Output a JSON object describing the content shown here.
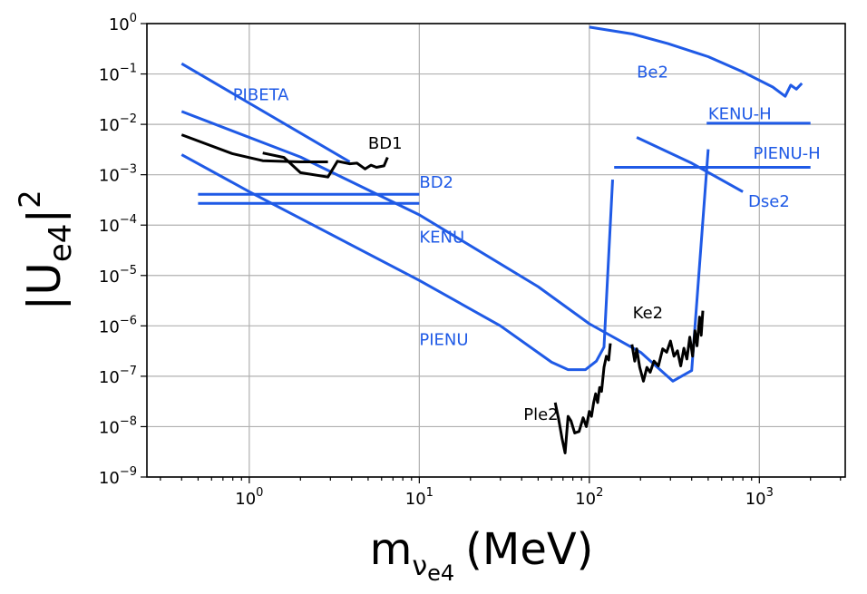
{
  "chart_data": {
    "type": "line",
    "xscale": "log",
    "yscale": "log",
    "xlim": [
      0.25,
      3200
    ],
    "ylim": [
      1e-09,
      1
    ],
    "grid": true,
    "x_major_ticks": [
      1,
      10,
      100,
      1000
    ],
    "x_tick_labels": [
      {
        "base": "10",
        "exp": "0"
      },
      {
        "base": "10",
        "exp": "1"
      },
      {
        "base": "10",
        "exp": "2"
      },
      {
        "base": "10",
        "exp": "3"
      }
    ],
    "y_major_ticks": [
      1e-09,
      1e-08,
      1e-07,
      1e-06,
      1e-05,
      0.0001,
      0.001,
      0.01,
      0.1,
      1
    ],
    "y_tick_labels": [
      {
        "base": "10",
        "exp": "−9"
      },
      {
        "base": "10",
        "exp": "−8"
      },
      {
        "base": "10",
        "exp": "−7"
      },
      {
        "base": "10",
        "exp": "−6"
      },
      {
        "base": "10",
        "exp": "−5"
      },
      {
        "base": "10",
        "exp": "−4"
      },
      {
        "base": "10",
        "exp": "−3"
      },
      {
        "base": "10",
        "exp": "−2"
      },
      {
        "base": "10",
        "exp": "−1"
      },
      {
        "base": "10",
        "exp": "0"
      }
    ],
    "xlabel": {
      "main": "m",
      "sub": "ν",
      "subsub": "e4",
      "unit": "(MeV)"
    },
    "ylabel": {
      "left": "|U",
      "sub": "e4",
      "right": "|",
      "sup": "2"
    },
    "colors": {
      "blue": "#1f5ae6",
      "black": "#000000",
      "grid": "#b0b0b0"
    },
    "series": [
      {
        "name": "PIBETA",
        "color": "blue",
        "label": {
          "text": "PIBETA",
          "x": 0.8,
          "y": 0.03
        },
        "points": [
          [
            0.4,
            0.16
          ],
          [
            3.9,
            0.0018
          ]
        ]
      },
      {
        "name": "KENU",
        "color": "blue",
        "label": {
          "text": "KENU",
          "x": 10,
          "y": 4.5e-05
        },
        "points": [
          [
            0.4,
            0.018
          ],
          [
            2,
            0.00225
          ],
          [
            10,
            0.00016
          ],
          [
            50,
            6e-06
          ],
          [
            100,
            1.1e-06
          ],
          [
            200,
            3e-07
          ],
          [
            310,
            8e-08
          ],
          [
            400,
            1.3e-07
          ],
          [
            500,
            0.0032
          ]
        ]
      },
      {
        "name": "PIENU",
        "color": "blue",
        "label": {
          "text": "PIENU",
          "x": 10,
          "y": 4.2e-07
        },
        "points": [
          [
            0.4,
            0.0025
          ],
          [
            1,
            0.00046
          ],
          [
            10,
            8e-06
          ],
          [
            30,
            1e-06
          ],
          [
            60,
            1.9e-07
          ],
          [
            75,
            1.35e-07
          ],
          [
            95,
            1.35e-07
          ],
          [
            110,
            2e-07
          ],
          [
            122,
            3.8e-07
          ],
          [
            137,
            0.0008
          ]
        ]
      },
      {
        "name": "BD2 (upper)",
        "color": "blue",
        "label": {
          "text": "BD2",
          "x": 10,
          "y": 0.00055
        },
        "points": [
          [
            0.5,
            0.00041
          ],
          [
            10,
            0.00041
          ]
        ]
      },
      {
        "name": "BD2 (lower)",
        "color": "blue",
        "label": null,
        "points": [
          [
            0.5,
            0.00027
          ],
          [
            10,
            0.00027
          ]
        ]
      },
      {
        "name": "Be2",
        "color": "blue",
        "label": {
          "text": "Be2",
          "x": 190,
          "y": 0.085
        },
        "points": [
          [
            100,
            0.85
          ],
          [
            180,
            0.62
          ],
          [
            290,
            0.4
          ],
          [
            500,
            0.22
          ],
          [
            800,
            0.11
          ],
          [
            1200,
            0.055
          ],
          [
            1420,
            0.036
          ],
          [
            1530,
            0.06
          ],
          [
            1650,
            0.05
          ],
          [
            1780,
            0.065
          ]
        ]
      },
      {
        "name": "KENU-H",
        "color": "blue",
        "label": {
          "text": "KENU-H",
          "x": 500,
          "y": 0.0125
        },
        "points": [
          [
            490,
            0.0105
          ],
          [
            2000,
            0.0105
          ]
        ]
      },
      {
        "name": "PIENU-H",
        "color": "blue",
        "label": {
          "text": "PIENU-H",
          "x": 920,
          "y": 0.0021
        },
        "points": [
          [
            140,
            0.0014
          ],
          [
            2000,
            0.0014
          ]
        ]
      },
      {
        "name": "Dse2",
        "color": "blue",
        "label": {
          "text": "Dse2",
          "x": 860,
          "y": 0.00023
        },
        "points": [
          [
            190,
            0.0055
          ],
          [
            400,
            0.0017
          ],
          [
            800,
            0.00046
          ]
        ]
      },
      {
        "name": "BD1 (a)",
        "color": "black",
        "label": {
          "text": "BD1",
          "x": 5,
          "y": 0.0033
        },
        "points": [
          [
            0.4,
            0.0062
          ],
          [
            0.8,
            0.0026
          ],
          [
            1.2,
            0.0019
          ],
          [
            2,
            0.0018
          ],
          [
            2.9,
            0.0018
          ]
        ]
      },
      {
        "name": "BD1 (b)",
        "color": "black",
        "label": null,
        "points": [
          [
            1.2,
            0.0027
          ],
          [
            1.6,
            0.0022
          ],
          [
            2,
            0.0011
          ],
          [
            2.9,
            0.0009
          ],
          [
            3.3,
            0.00185
          ],
          [
            3.9,
            0.00165
          ],
          [
            4.3,
            0.0017
          ],
          [
            4.8,
            0.0013
          ],
          [
            5.2,
            0.00155
          ],
          [
            5.6,
            0.0014
          ],
          [
            6.2,
            0.0015
          ],
          [
            6.5,
            0.0022
          ]
        ]
      },
      {
        "name": "Ple2",
        "color": "black",
        "label": {
          "text": "Ple2",
          "x": 41,
          "y": 1.35e-08
        },
        "points": [
          [
            63,
            3e-08
          ],
          [
            66,
            1.4e-08
          ],
          [
            69,
            6e-09
          ],
          [
            72,
            3e-09
          ],
          [
            75,
            1.6e-08
          ],
          [
            78,
            1.3e-08
          ],
          [
            82,
            7.5e-09
          ],
          [
            87,
            8e-09
          ],
          [
            92,
            1.5e-08
          ],
          [
            96,
            1e-08
          ],
          [
            100,
            2e-08
          ],
          [
            103,
            1.6e-08
          ],
          [
            106,
            3e-08
          ],
          [
            109,
            4.5e-08
          ],
          [
            112,
            3e-08
          ],
          [
            115,
            6e-08
          ],
          [
            118,
            5e-08
          ],
          [
            122,
            1.5e-07
          ],
          [
            126,
            2.5e-07
          ],
          [
            130,
            2.1e-07
          ],
          [
            133,
            4.5e-07
          ]
        ]
      },
      {
        "name": "Ke2",
        "color": "black",
        "label": {
          "text": "Ke2",
          "x": 180,
          "y": 1.4e-06
        },
        "points": [
          [
            178,
            4.3e-07
          ],
          [
            185,
            2e-07
          ],
          [
            190,
            3.5e-07
          ],
          [
            198,
            1.5e-07
          ],
          [
            208,
            8e-08
          ],
          [
            218,
            1.5e-07
          ],
          [
            228,
            1.2e-07
          ],
          [
            240,
            2e-07
          ],
          [
            255,
            1.6e-07
          ],
          [
            270,
            3.5e-07
          ],
          [
            285,
            3e-07
          ],
          [
            300,
            5e-07
          ],
          [
            315,
            2.5e-07
          ],
          [
            330,
            3.2e-07
          ],
          [
            345,
            1.6e-07
          ],
          [
            360,
            3.6e-07
          ],
          [
            375,
            2.2e-07
          ],
          [
            390,
            6e-07
          ],
          [
            405,
            2.5e-07
          ],
          [
            418,
            8e-07
          ],
          [
            430,
            4e-07
          ],
          [
            445,
            1.5e-06
          ],
          [
            455,
            6.5e-07
          ],
          [
            465,
            2e-06
          ]
        ]
      }
    ]
  }
}
